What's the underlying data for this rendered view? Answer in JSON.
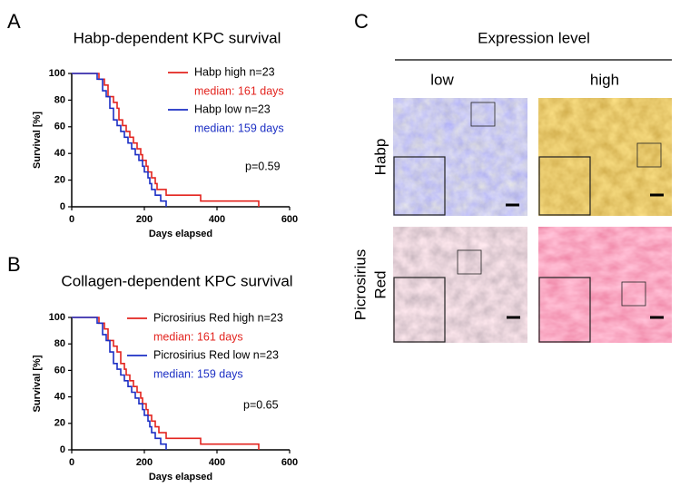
{
  "panel_labels": [
    "A",
    "B",
    "C"
  ],
  "chart_data": [
    {
      "type": "line",
      "step": true,
      "title": "Habp-dependent KPC survival",
      "xlabel": "Days elapsed",
      "ylabel": "Survival [%]",
      "xlim": [
        0,
        600
      ],
      "ylim": [
        0,
        100
      ],
      "xticks": [
        0,
        200,
        400,
        600
      ],
      "yticks": [
        0,
        20,
        40,
        60,
        80,
        100
      ],
      "annotation": "p=0.59",
      "series": [
        {
          "name": "Habp high n=23",
          "note": "median: 161 days",
          "color": "#e3241f",
          "x": [
            0,
            75,
            90,
            100,
            115,
            125,
            130,
            140,
            150,
            160,
            170,
            180,
            190,
            195,
            205,
            210,
            220,
            230,
            235,
            260,
            355,
            515
          ],
          "values": [
            100,
            95.7,
            91.3,
            82.6,
            78.3,
            73.9,
            65.2,
            60.9,
            56.5,
            52.2,
            47.8,
            43.5,
            39.1,
            34.8,
            30.4,
            26.1,
            21.7,
            17.4,
            13,
            8.7,
            4.3,
            0
          ]
        },
        {
          "name": "Habp low  n=23",
          "note": "median: 159 days",
          "color": "#1c2fc4",
          "x": [
            0,
            70,
            85,
            95,
            105,
            115,
            125,
            135,
            145,
            155,
            165,
            175,
            185,
            195,
            200,
            210,
            215,
            220,
            230,
            245,
            260
          ],
          "values": [
            100,
            95.7,
            87,
            82.6,
            73.9,
            65.2,
            60.9,
            56.5,
            52.2,
            47.8,
            43.5,
            39.1,
            34.8,
            30.4,
            26.1,
            21.7,
            17.4,
            13,
            8.7,
            4.3,
            0
          ]
        }
      ]
    },
    {
      "type": "line",
      "step": true,
      "title": "Collagen-dependent KPC survival",
      "xlabel": "Days elapsed",
      "ylabel": "Survival [%]",
      "xlim": [
        0,
        600
      ],
      "ylim": [
        0,
        100
      ],
      "xticks": [
        0,
        200,
        400,
        600
      ],
      "yticks": [
        0,
        20,
        40,
        60,
        80,
        100
      ],
      "annotation": "p=0.65",
      "series": [
        {
          "name": "Picrosirius Red high n=23",
          "note": "median: 161 days",
          "color": "#e3241f",
          "x": [
            0,
            75,
            90,
            100,
            115,
            125,
            135,
            145,
            150,
            160,
            170,
            180,
            190,
            195,
            205,
            210,
            220,
            230,
            240,
            260,
            355,
            515
          ],
          "values": [
            100,
            95.7,
            91.3,
            82.6,
            78.3,
            73.9,
            65.2,
            60.9,
            56.5,
            52.2,
            47.8,
            43.5,
            39.1,
            34.8,
            30.4,
            26.1,
            21.7,
            17.4,
            13,
            8.7,
            4.3,
            0
          ]
        },
        {
          "name": "Picrosirius Red low n=23",
          "note": "median: 159 days",
          "color": "#1c2fc4",
          "x": [
            0,
            70,
            85,
            95,
            105,
            115,
            125,
            135,
            145,
            155,
            165,
            175,
            185,
            195,
            200,
            210,
            215,
            220,
            230,
            245,
            260
          ],
          "values": [
            100,
            95.7,
            87,
            82.6,
            73.9,
            65.2,
            60.9,
            56.5,
            52.2,
            47.8,
            43.5,
            39.1,
            34.8,
            30.4,
            26.1,
            21.7,
            17.4,
            13,
            8.7,
            4.3,
            0
          ]
        }
      ]
    }
  ],
  "image_panel": {
    "title": "Expression level",
    "columns": [
      "low",
      "high"
    ],
    "rows": [
      [
        "Habp"
      ],
      [
        "Picrosirius",
        "Red"
      ]
    ]
  }
}
